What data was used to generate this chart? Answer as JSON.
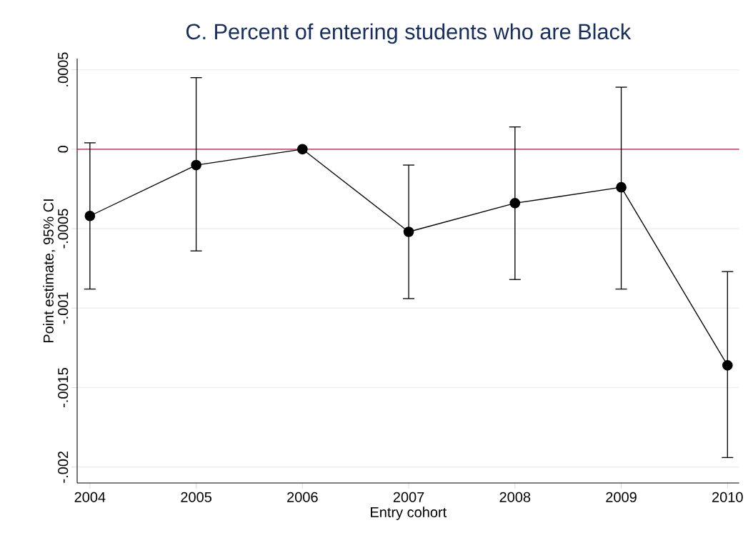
{
  "chart_data": {
    "type": "line",
    "title": "C. Percent of entering students who are Black",
    "xlabel": "Entry cohort",
    "ylabel": "Point estimate, 95% CI",
    "x": [
      2004,
      2005,
      2006,
      2007,
      2008,
      2009,
      2010
    ],
    "series": [
      {
        "color": "#000000",
        "values": [
          -0.00042,
          -0.0001,
          0,
          -0.00052,
          -0.00034,
          -0.00024,
          -0.00136
        ],
        "errors": [
          [
            -0.00088,
            4e-05
          ],
          [
            -0.00064,
            0.00045
          ],
          null,
          [
            -0.00094,
            -0.0001
          ],
          [
            -0.00082,
            0.00014
          ],
          [
            -0.00088,
            0.00039
          ],
          [
            -0.00194,
            -0.00077
          ]
        ]
      }
    ],
    "xlim": [
      2003.88,
      2010.11
    ],
    "ylim": [
      -0.0021,
      0.00057
    ],
    "xticks": [
      2004,
      2005,
      2006,
      2007,
      2008,
      2009,
      2010
    ],
    "yticks": [
      {
        "value": -0.002,
        "label": "-.002"
      },
      {
        "value": -0.0015,
        "label": "-.0015"
      },
      {
        "value": -0.001,
        "label": "-.001"
      },
      {
        "value": -0.0005,
        "label": "-.0005"
      },
      {
        "value": 0,
        "label": "0"
      },
      {
        "value": 0.0005,
        "label": ".0005"
      }
    ],
    "ref_lines": [
      {
        "axis": "y",
        "value": 0,
        "color": "#a3203f"
      }
    ],
    "grid": "y",
    "marker": "circle",
    "line_style": "solid"
  }
}
